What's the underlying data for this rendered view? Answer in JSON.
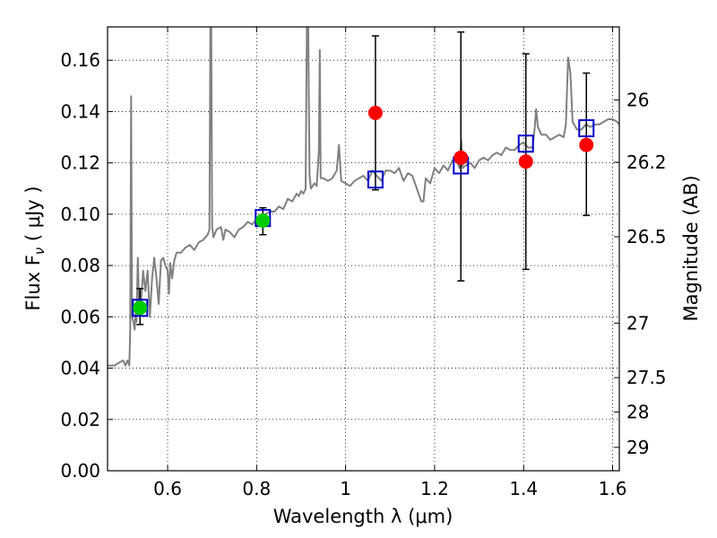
{
  "chart_data": {
    "type": "scatter",
    "xlabel": "Wavelength  λ (μm)",
    "ylabel": "Flux  F",
    "ylabel_sub": "ν",
    "ylabel_unit": " ( μJy )",
    "y2label": "Magnitude (AB)",
    "xlim": [
      0.465,
      1.615
    ],
    "ylim": [
      0.0,
      0.173
    ],
    "grid": true,
    "x_ticks": [
      {
        "value": 0.6,
        "label": "0.6"
      },
      {
        "value": 0.8,
        "label": "0.8"
      },
      {
        "value": 1.0,
        "label": "1"
      },
      {
        "value": 1.2,
        "label": "1.2"
      },
      {
        "value": 1.4,
        "label": "1.4"
      },
      {
        "value": 1.6,
        "label": "1.6"
      }
    ],
    "y_ticks": [
      {
        "value": 0.0,
        "label": "0.00"
      },
      {
        "value": 0.02,
        "label": "0.02"
      },
      {
        "value": 0.04,
        "label": "0.04"
      },
      {
        "value": 0.06,
        "label": "0.06"
      },
      {
        "value": 0.08,
        "label": "0.08"
      },
      {
        "value": 0.1,
        "label": "0.10"
      },
      {
        "value": 0.12,
        "label": "0.12"
      },
      {
        "value": 0.14,
        "label": "0.14"
      },
      {
        "value": 0.16,
        "label": "0.16"
      }
    ],
    "mag_ticks": [
      {
        "mag": 26.0,
        "label": "26"
      },
      {
        "mag": 26.2,
        "label": "26.2"
      },
      {
        "mag": 26.5,
        "label": "26.5"
      },
      {
        "mag": 27.0,
        "label": "27"
      },
      {
        "mag": 27.5,
        "label": "27.5"
      },
      {
        "mag": 28.0,
        "label": "28"
      },
      {
        "mag": 29.0,
        "label": "29"
      }
    ],
    "model_color": "#808080",
    "model_spectrum": [
      [
        0.465,
        0.041
      ],
      [
        0.48,
        0.041
      ],
      [
        0.49,
        0.042
      ],
      [
        0.5,
        0.043
      ],
      [
        0.505,
        0.041
      ],
      [
        0.51,
        0.043
      ],
      [
        0.514,
        0.041
      ],
      [
        0.516,
        0.055
      ],
      [
        0.518,
        0.146
      ],
      [
        0.52,
        0.06
      ],
      [
        0.523,
        0.058
      ],
      [
        0.526,
        0.055
      ],
      [
        0.528,
        0.062
      ],
      [
        0.53,
        0.058
      ],
      [
        0.533,
        0.083
      ],
      [
        0.536,
        0.062
      ],
      [
        0.54,
        0.065
      ],
      [
        0.545,
        0.078
      ],
      [
        0.55,
        0.07
      ],
      [
        0.555,
        0.078
      ],
      [
        0.56,
        0.06
      ],
      [
        0.565,
        0.075
      ],
      [
        0.57,
        0.083
      ],
      [
        0.575,
        0.075
      ],
      [
        0.58,
        0.065
      ],
      [
        0.585,
        0.082
      ],
      [
        0.59,
        0.083
      ],
      [
        0.595,
        0.08
      ],
      [
        0.6,
        0.078
      ],
      [
        0.603,
        0.069
      ],
      [
        0.606,
        0.081
      ],
      [
        0.61,
        0.075
      ],
      [
        0.615,
        0.082
      ],
      [
        0.62,
        0.085
      ],
      [
        0.63,
        0.085
      ],
      [
        0.64,
        0.087
      ],
      [
        0.65,
        0.088
      ],
      [
        0.66,
        0.086
      ],
      [
        0.67,
        0.089
      ],
      [
        0.68,
        0.09
      ],
      [
        0.69,
        0.092
      ],
      [
        0.694,
        0.094
      ],
      [
        0.696,
        0.173
      ],
      [
        0.698,
        0.173
      ],
      [
        0.7,
        0.095
      ],
      [
        0.703,
        0.091
      ],
      [
        0.71,
        0.094
      ],
      [
        0.72,
        0.095
      ],
      [
        0.725,
        0.09
      ],
      [
        0.73,
        0.094
      ],
      [
        0.74,
        0.093
      ],
      [
        0.75,
        0.091
      ],
      [
        0.76,
        0.094
      ],
      [
        0.77,
        0.095
      ],
      [
        0.78,
        0.097
      ],
      [
        0.79,
        0.096
      ],
      [
        0.8,
        0.098
      ],
      [
        0.81,
        0.097
      ],
      [
        0.82,
        0.1
      ],
      [
        0.83,
        0.101
      ],
      [
        0.84,
        0.101
      ],
      [
        0.85,
        0.103
      ],
      [
        0.86,
        0.102
      ],
      [
        0.87,
        0.106
      ],
      [
        0.88,
        0.105
      ],
      [
        0.89,
        0.108
      ],
      [
        0.895,
        0.107
      ],
      [
        0.9,
        0.109
      ],
      [
        0.905,
        0.108
      ],
      [
        0.91,
        0.11
      ],
      [
        0.913,
        0.173
      ],
      [
        0.916,
        0.173
      ],
      [
        0.919,
        0.115
      ],
      [
        0.922,
        0.11
      ],
      [
        0.93,
        0.112
      ],
      [
        0.935,
        0.111
      ],
      [
        0.94,
        0.125
      ],
      [
        0.942,
        0.164
      ],
      [
        0.944,
        0.114
      ],
      [
        0.95,
        0.114
      ],
      [
        0.96,
        0.113
      ],
      [
        0.97,
        0.114
      ],
      [
        0.98,
        0.117
      ],
      [
        0.985,
        0.127
      ],
      [
        0.99,
        0.113
      ],
      [
        1.0,
        0.112
      ],
      [
        1.01,
        0.111
      ],
      [
        1.02,
        0.113
      ],
      [
        1.03,
        0.114
      ],
      [
        1.04,
        0.115
      ],
      [
        1.05,
        0.113
      ],
      [
        1.06,
        0.117
      ],
      [
        1.07,
        0.115
      ],
      [
        1.08,
        0.113
      ],
      [
        1.09,
        0.117
      ],
      [
        1.1,
        0.117
      ],
      [
        1.11,
        0.116
      ],
      [
        1.12,
        0.118
      ],
      [
        1.13,
        0.113
      ],
      [
        1.14,
        0.116
      ],
      [
        1.15,
        0.115
      ],
      [
        1.16,
        0.11
      ],
      [
        1.17,
        0.105
      ],
      [
        1.175,
        0.105
      ],
      [
        1.18,
        0.114
      ],
      [
        1.19,
        0.112
      ],
      [
        1.2,
        0.118
      ],
      [
        1.21,
        0.116
      ],
      [
        1.22,
        0.119
      ],
      [
        1.23,
        0.117
      ],
      [
        1.24,
        0.121
      ],
      [
        1.25,
        0.121
      ],
      [
        1.256,
        0.118
      ],
      [
        1.26,
        0.129
      ],
      [
        1.263,
        0.118
      ],
      [
        1.27,
        0.119
      ],
      [
        1.28,
        0.12
      ],
      [
        1.29,
        0.118
      ],
      [
        1.3,
        0.121
      ],
      [
        1.31,
        0.122
      ],
      [
        1.32,
        0.121
      ],
      [
        1.33,
        0.123
      ],
      [
        1.34,
        0.124
      ],
      [
        1.35,
        0.123
      ],
      [
        1.36,
        0.126
      ],
      [
        1.37,
        0.125
      ],
      [
        1.38,
        0.125
      ],
      [
        1.39,
        0.127
      ],
      [
        1.4,
        0.128
      ],
      [
        1.41,
        0.126
      ],
      [
        1.42,
        0.126
      ],
      [
        1.425,
        0.134
      ],
      [
        1.428,
        0.141
      ],
      [
        1.432,
        0.134
      ],
      [
        1.44,
        0.131
      ],
      [
        1.45,
        0.131
      ],
      [
        1.46,
        0.129
      ],
      [
        1.47,
        0.13
      ],
      [
        1.48,
        0.131
      ],
      [
        1.49,
        0.13
      ],
      [
        1.495,
        0.135
      ],
      [
        1.5,
        0.161
      ],
      [
        1.505,
        0.155
      ],
      [
        1.51,
        0.136
      ],
      [
        1.52,
        0.133
      ],
      [
        1.53,
        0.133
      ],
      [
        1.54,
        0.135
      ],
      [
        1.55,
        0.134
      ],
      [
        1.56,
        0.135
      ],
      [
        1.57,
        0.135
      ],
      [
        1.58,
        0.136
      ],
      [
        1.59,
        0.137
      ],
      [
        1.6,
        0.137
      ],
      [
        1.61,
        0.136
      ],
      [
        1.615,
        0.135
      ]
    ],
    "model_photometry": {
      "color": "#0000cc",
      "points": [
        [
          0.538,
          0.0635
        ],
        [
          0.814,
          0.0985
        ],
        [
          1.067,
          0.1135
        ],
        [
          1.259,
          0.119
        ],
        [
          1.405,
          0.1275
        ],
        [
          1.541,
          0.1335
        ]
      ]
    },
    "observations": [
      {
        "x": 0.538,
        "y": 0.0635,
        "yerr_low": 0.057,
        "yerr_high": 0.071,
        "color": "#00cc00"
      },
      {
        "x": 0.814,
        "y": 0.0975,
        "yerr_low": 0.092,
        "yerr_high": 0.1025,
        "color": "#00cc00"
      },
      {
        "x": 1.067,
        "y": 0.1395,
        "yerr_low": 0.1095,
        "yerr_high": 0.1695,
        "color": "#ff0000"
      },
      {
        "x": 1.259,
        "y": 0.122,
        "yerr_low": 0.074,
        "yerr_high": 0.171,
        "color": "#ff0000"
      },
      {
        "x": 1.405,
        "y": 0.1205,
        "yerr_low": 0.0785,
        "yerr_high": 0.1625,
        "color": "#ff0000"
      },
      {
        "x": 1.541,
        "y": 0.127,
        "yerr_low": 0.0995,
        "yerr_high": 0.155,
        "color": "#ff0000"
      }
    ]
  }
}
